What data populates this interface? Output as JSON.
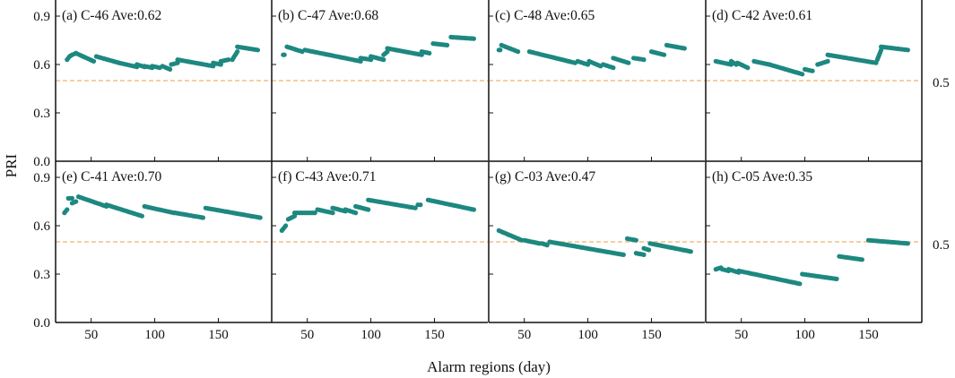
{
  "figure": {
    "xlabel": "Alarm regions (day)",
    "ylabel": "PRI",
    "reference_line_value": 0.5,
    "reference_line_label": "0.5",
    "x_ticks": [
      50,
      100,
      150
    ],
    "x_tick_labels": [
      "50",
      "100",
      "150"
    ],
    "y_ticks": [
      0.0,
      0.3,
      0.6,
      0.9
    ],
    "y_tick_labels": [
      "0.0",
      "0.3",
      "0.6",
      "0.9"
    ],
    "colors": {
      "series": "#1d8880",
      "reference_line": "#f3be86",
      "axes": "#111111"
    }
  },
  "chart_data": [
    {
      "type": "scatter",
      "title": "(a) C-46  Ave:0.62",
      "label": "(a)",
      "name": "C-46",
      "average": 0.62,
      "xlabel": "Alarm regions (day)",
      "ylabel": "PRI",
      "xlim": [
        22,
        192
      ],
      "ylim": [
        0,
        1.0
      ],
      "reference_line": 0.5,
      "segments": [
        {
          "x": [
            31,
            33,
            35,
            38
          ],
          "y": [
            0.63,
            0.65,
            0.66,
            0.67
          ]
        },
        {
          "x": [
            38,
            52
          ],
          "y": [
            0.67,
            0.62
          ]
        },
        {
          "x": [
            54,
            72
          ],
          "y": [
            0.65,
            0.61
          ]
        },
        {
          "x": [
            72,
            86
          ],
          "y": [
            0.61,
            0.585
          ]
        },
        {
          "x": [
            86,
            92
          ],
          "y": [
            0.6,
            0.585
          ]
        },
        {
          "x": [
            92,
            98
          ],
          "y": [
            0.59,
            0.58
          ]
        },
        {
          "x": [
            98,
            104
          ],
          "y": [
            0.59,
            0.58
          ]
        },
        {
          "x": [
            106,
            112
          ],
          "y": [
            0.59,
            0.57
          ]
        },
        {
          "x": [
            113,
            118
          ],
          "y": [
            0.6,
            0.61
          ]
        },
        {
          "x": [
            118,
            146
          ],
          "y": [
            0.63,
            0.59
          ]
        },
        {
          "x": [
            146,
            152
          ],
          "y": [
            0.61,
            0.6
          ]
        },
        {
          "x": [
            152,
            158
          ],
          "y": [
            0.62,
            0.63
          ]
        },
        {
          "x": [
            161,
            165
          ],
          "y": [
            0.63,
            0.68
          ]
        },
        {
          "x": [
            165,
            181
          ],
          "y": [
            0.71,
            0.69
          ]
        }
      ]
    },
    {
      "type": "scatter",
      "title": "(b) C-47  Ave:0.68",
      "label": "(b)",
      "name": "C-47",
      "average": 0.68,
      "xlabel": "Alarm regions (day)",
      "ylabel": "PRI",
      "xlim": [
        22,
        192
      ],
      "ylim": [
        0,
        1.0
      ],
      "reference_line": 0.5,
      "segments": [
        {
          "x": [
            31,
            32
          ],
          "y": [
            0.66,
            0.66
          ]
        },
        {
          "x": [
            34,
            46
          ],
          "y": [
            0.71,
            0.68
          ]
        },
        {
          "x": [
            48,
            92
          ],
          "y": [
            0.69,
            0.62
          ]
        },
        {
          "x": [
            92,
            100
          ],
          "y": [
            0.64,
            0.63
          ]
        },
        {
          "x": [
            100,
            110
          ],
          "y": [
            0.65,
            0.63
          ]
        },
        {
          "x": [
            110,
            113
          ],
          "y": [
            0.66,
            0.68
          ]
        },
        {
          "x": [
            113,
            140
          ],
          "y": [
            0.7,
            0.66
          ]
        },
        {
          "x": [
            140,
            146
          ],
          "y": [
            0.68,
            0.67
          ]
        },
        {
          "x": [
            149,
            160
          ],
          "y": [
            0.73,
            0.72
          ]
        },
        {
          "x": [
            163,
            181
          ],
          "y": [
            0.77,
            0.76
          ]
        }
      ]
    },
    {
      "type": "scatter",
      "title": "(c) C-48  Ave:0.65",
      "label": "(c)",
      "name": "C-48",
      "average": 0.65,
      "xlabel": "Alarm regions (day)",
      "ylabel": "PRI",
      "xlim": [
        22,
        192
      ],
      "ylim": [
        0,
        1.0
      ],
      "reference_line": 0.5,
      "segments": [
        {
          "x": [
            30,
            31
          ],
          "y": [
            0.69,
            0.69
          ]
        },
        {
          "x": [
            32,
            45
          ],
          "y": [
            0.72,
            0.68
          ]
        },
        {
          "x": [
            54,
            90
          ],
          "y": [
            0.68,
            0.61
          ]
        },
        {
          "x": [
            92,
            100
          ],
          "y": [
            0.62,
            0.6
          ]
        },
        {
          "x": [
            101,
            110
          ],
          "y": [
            0.62,
            0.59
          ]
        },
        {
          "x": [
            112,
            120
          ],
          "y": [
            0.6,
            0.58
          ]
        },
        {
          "x": [
            120,
            132
          ],
          "y": [
            0.64,
            0.61
          ]
        },
        {
          "x": [
            136,
            144
          ],
          "y": [
            0.64,
            0.63
          ]
        },
        {
          "x": [
            150,
            160
          ],
          "y": [
            0.68,
            0.66
          ]
        },
        {
          "x": [
            162,
            176
          ],
          "y": [
            0.72,
            0.7
          ]
        }
      ]
    },
    {
      "type": "scatter",
      "title": "(d) C-42  Ave:0.61",
      "label": "(d)",
      "name": "C-42",
      "average": 0.61,
      "xlabel": "Alarm regions (day)",
      "ylabel": "PRI",
      "xlim": [
        22,
        192
      ],
      "ylim": [
        0,
        1.0
      ],
      "reference_line": 0.5,
      "segments": [
        {
          "x": [
            30,
            42
          ],
          "y": [
            0.62,
            0.6
          ]
        },
        {
          "x": [
            42,
            46
          ],
          "y": [
            0.62,
            0.6
          ]
        },
        {
          "x": [
            47,
            55
          ],
          "y": [
            0.61,
            0.58
          ]
        },
        {
          "x": [
            60,
            72
          ],
          "y": [
            0.62,
            0.6
          ]
        },
        {
          "x": [
            72,
            98
          ],
          "y": [
            0.6,
            0.54
          ]
        },
        {
          "x": [
            100,
            106
          ],
          "y": [
            0.57,
            0.56
          ]
        },
        {
          "x": [
            110,
            118
          ],
          "y": [
            0.6,
            0.62
          ]
        },
        {
          "x": [
            118,
            156
          ],
          "y": [
            0.66,
            0.61
          ]
        },
        {
          "x": [
            157,
            160
          ],
          "y": [
            0.63,
            0.69
          ]
        },
        {
          "x": [
            160,
            181
          ],
          "y": [
            0.71,
            0.69
          ]
        }
      ]
    },
    {
      "type": "scatter",
      "title": "(e) C-41  Ave:0.70",
      "label": "(e)",
      "name": "C-41",
      "average": 0.7,
      "xlabel": "Alarm regions (day)",
      "ylabel": "PRI",
      "xlim": [
        22,
        192
      ],
      "ylim": [
        0,
        1.0
      ],
      "reference_line": 0.5,
      "segments": [
        {
          "x": [
            29,
            31
          ],
          "y": [
            0.68,
            0.7
          ]
        },
        {
          "x": [
            32,
            35
          ],
          "y": [
            0.77,
            0.77
          ]
        },
        {
          "x": [
            35,
            38
          ],
          "y": [
            0.74,
            0.75
          ]
        },
        {
          "x": [
            40,
            62
          ],
          "y": [
            0.78,
            0.72
          ]
        },
        {
          "x": [
            62,
            90
          ],
          "y": [
            0.73,
            0.66
          ]
        },
        {
          "x": [
            92,
            115
          ],
          "y": [
            0.72,
            0.68
          ]
        },
        {
          "x": [
            116,
            138
          ],
          "y": [
            0.68,
            0.65
          ]
        },
        {
          "x": [
            140,
            183
          ],
          "y": [
            0.71,
            0.65
          ]
        }
      ]
    },
    {
      "type": "scatter",
      "title": "(f) C-43  Ave:0.71",
      "label": "(f)",
      "name": "C-43",
      "average": 0.71,
      "xlabel": "Alarm regions (day)",
      "ylabel": "PRI",
      "xlim": [
        22,
        192
      ],
      "ylim": [
        0,
        1.0
      ],
      "reference_line": 0.5,
      "segments": [
        {
          "x": [
            30,
            33
          ],
          "y": [
            0.57,
            0.6
          ]
        },
        {
          "x": [
            35,
            40
          ],
          "y": [
            0.64,
            0.66
          ]
        },
        {
          "x": [
            40,
            56
          ],
          "y": [
            0.68,
            0.68
          ]
        },
        {
          "x": [
            58,
            70
          ],
          "y": [
            0.7,
            0.68
          ]
        },
        {
          "x": [
            70,
            80
          ],
          "y": [
            0.71,
            0.69
          ]
        },
        {
          "x": [
            80,
            88
          ],
          "y": [
            0.7,
            0.68
          ]
        },
        {
          "x": [
            88,
            98
          ],
          "y": [
            0.72,
            0.7
          ]
        },
        {
          "x": [
            98,
            135
          ],
          "y": [
            0.76,
            0.71
          ]
        },
        {
          "x": [
            137,
            139
          ],
          "y": [
            0.73,
            0.73
          ]
        },
        {
          "x": [
            145,
            181
          ],
          "y": [
            0.76,
            0.7
          ]
        }
      ]
    },
    {
      "type": "scatter",
      "title": "(g) C-03  Ave:0.47",
      "label": "(g)",
      "name": "C-03",
      "average": 0.47,
      "xlabel": "Alarm regions (day)",
      "ylabel": "PRI",
      "xlim": [
        22,
        192
      ],
      "ylim": [
        0,
        1.0
      ],
      "reference_line": 0.5,
      "segments": [
        {
          "x": [
            30,
            48
          ],
          "y": [
            0.57,
            0.51
          ]
        },
        {
          "x": [
            50,
            62
          ],
          "y": [
            0.51,
            0.49
          ]
        },
        {
          "x": [
            64,
            68
          ],
          "y": [
            0.49,
            0.48
          ]
        },
        {
          "x": [
            70,
            128
          ],
          "y": [
            0.5,
            0.42
          ]
        },
        {
          "x": [
            131,
            138
          ],
          "y": [
            0.52,
            0.51
          ]
        },
        {
          "x": [
            138,
            144
          ],
          "y": [
            0.43,
            0.42
          ]
        },
        {
          "x": [
            144,
            148
          ],
          "y": [
            0.46,
            0.45
          ]
        },
        {
          "x": [
            149,
            181
          ],
          "y": [
            0.49,
            0.44
          ]
        }
      ]
    },
    {
      "type": "scatter",
      "title": "(h) C-05  Ave:0.35",
      "label": "(h)",
      "name": "C-05",
      "average": 0.35,
      "xlabel": "Alarm regions (day)",
      "ylabel": "PRI",
      "xlim": [
        22,
        192
      ],
      "ylim": [
        0,
        1.0
      ],
      "reference_line": 0.5,
      "segments": [
        {
          "x": [
            30,
            34
          ],
          "y": [
            0.33,
            0.34
          ]
        },
        {
          "x": [
            35,
            40
          ],
          "y": [
            0.33,
            0.32
          ]
        },
        {
          "x": [
            40,
            48
          ],
          "y": [
            0.33,
            0.31
          ]
        },
        {
          "x": [
            48,
            96
          ],
          "y": [
            0.32,
            0.24
          ]
        },
        {
          "x": [
            98,
            125
          ],
          "y": [
            0.3,
            0.27
          ]
        },
        {
          "x": [
            127,
            145
          ],
          "y": [
            0.41,
            0.39
          ]
        },
        {
          "x": [
            150,
            181
          ],
          "y": [
            0.51,
            0.49
          ]
        }
      ]
    }
  ]
}
